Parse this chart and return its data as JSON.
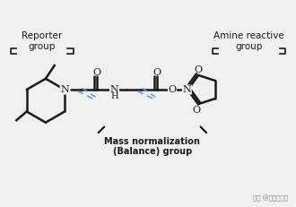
{
  "bg_color": "#f0f0f0",
  "line_color": "#1a1a1a",
  "bracket_color": "#1a1a1a",
  "dashed_color": "#6699cc",
  "text_color": "#1a1a1a",
  "watermark": "知乎 @勤劳的阿珍",
  "reporter_label": [
    "Reporter",
    "group"
  ],
  "amine_label": [
    "Amine reactive",
    "group"
  ],
  "mass_norm_label": [
    "Mass normalization",
    "(Balance) group"
  ]
}
